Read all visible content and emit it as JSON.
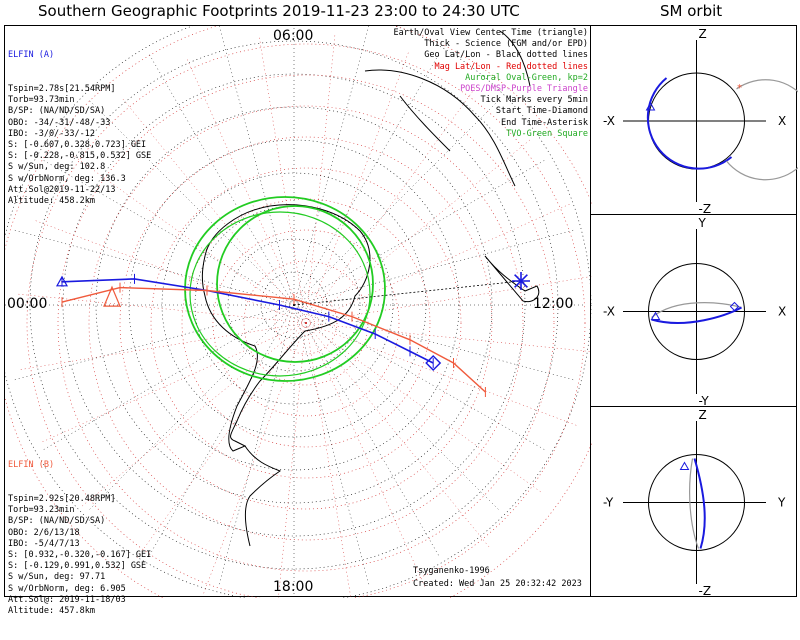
{
  "header": {
    "title": "Southern Geographic Footprints 2019-11-23 23:00 to 24:30 UTC",
    "sm_title": "SM orbit"
  },
  "legend": [
    {
      "text": "Earth/Oval View Center Time (triangle)",
      "color": "#000000"
    },
    {
      "text": "Thick - Science (FGM and/or EPD)",
      "color": "#000000"
    },
    {
      "text": "Geo Lat/Lon - Black dotted lines",
      "color": "#000000"
    },
    {
      "text": "Mag Lat/Lon - Red dotted lines",
      "color": "#e00000"
    },
    {
      "text": "Auroral Oval-Green, kp=2",
      "color": "#22aa22"
    },
    {
      "text": "POES/DMSP-Purple Triangle",
      "color": "#cc44cc"
    },
    {
      "text": "Tick Marks every 5min",
      "color": "#000000"
    },
    {
      "text": "Start Time-Diamond",
      "color": "#000000"
    },
    {
      "text": "End Time-Asterisk",
      "color": "#000000"
    },
    {
      "text": "TVO-Green Square",
      "color": "#22aa22"
    }
  ],
  "elfin_a": {
    "name": "ELFIN (A)",
    "color": "#1a1adf",
    "lines": [
      "Tspin=2.78s[21.54RPM]",
      "Torb=93.73min",
      "B/SP: (NA/ND/SD/SA)",
      "OBO: -34/-31/-48/-33",
      "IBO: -3/0/-33/-12",
      "S: [-0.607,0.328,0.723] GEI",
      "S: [-0.228,-0.815,0.532] GSE",
      "S w/Sun, deg: 102.8",
      "S w/OrbNorm, deg: 136.3",
      "Att.Sol@2019-11-22/13",
      "Altitude: 458.2km"
    ]
  },
  "elfin_b": {
    "name": "ELFIN (B)",
    "color": "#f05a3c",
    "lines": [
      "Tspin=2.92s[20.48RPM]",
      "Torb=93.23min",
      "B/SP: (NA/ND/SD/SA)",
      "OBO: 2/6/13/18",
      "IBO: -5/4/7/13",
      "S: [0.932,-0.320,-0.167] GEI",
      "S: [-0.129,0.991,0.532] GSE",
      "S w/Sun, deg: 97.71",
      "S w/OrbNorm, deg: 6.905",
      "Att.Sol@: 2019-11-18/03",
      "Altitude: 457.8km"
    ]
  },
  "footer": {
    "model": "Tsyganenko-1996",
    "created": "Created: Wed Jan 25 20:32:42 2023"
  },
  "chart_data": {
    "type": "polar-map",
    "hemisphere": "southern",
    "time_labels": {
      "top": "06:00",
      "left": "00:00",
      "right": "12:00",
      "bottom": "18:00"
    },
    "tracks": [
      {
        "name": "ELFIN (A)",
        "color": "#1a1adf",
        "points": [
          [
            -0.8,
            -0.08
          ],
          [
            -0.55,
            -0.09
          ],
          [
            -0.3,
            -0.05
          ],
          [
            -0.05,
            0.0
          ],
          [
            0.12,
            0.04
          ],
          [
            0.28,
            0.1
          ],
          [
            0.4,
            0.16
          ],
          [
            0.48,
            0.2
          ]
        ]
      },
      {
        "name": "ELFIN (B)",
        "color": "#f05a3c",
        "points": [
          [
            -0.8,
            -0.01
          ],
          [
            -0.6,
            -0.06
          ],
          [
            -0.3,
            -0.05
          ],
          [
            0.0,
            -0.02
          ],
          [
            0.2,
            0.04
          ],
          [
            0.4,
            0.12
          ],
          [
            0.55,
            0.2
          ],
          [
            0.66,
            0.3
          ]
        ]
      }
    ],
    "oval_color": "#22cc22",
    "sm_orbits": [
      {
        "axes": {
          "top": "Z",
          "bottom": "-Z",
          "left": "-X",
          "right": "X"
        }
      },
      {
        "axes": {
          "top": "Y",
          "bottom": "-Y",
          "left": "-X",
          "right": "X"
        }
      },
      {
        "axes": {
          "top": "Z",
          "bottom": "-Z",
          "left": "-Y",
          "right": "Y"
        }
      }
    ]
  }
}
